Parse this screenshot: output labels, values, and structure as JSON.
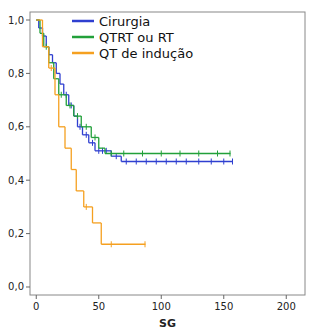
{
  "chart_data": {
    "type": "survival",
    "xlabel": "SG",
    "xlim": [
      -5,
      215
    ],
    "ylim": [
      -0.03,
      1.03
    ],
    "xticks": [
      0,
      50,
      100,
      150,
      200
    ],
    "yticks": [
      {
        "value": 0,
        "label": "0,0"
      },
      {
        "value": 0.2,
        "label": "0,2"
      },
      {
        "value": 0.4,
        "label": "0,4"
      },
      {
        "value": 0.6,
        "label": "0,6"
      },
      {
        "value": 0.8,
        "label": "0,8"
      },
      {
        "value": 1,
        "label": "1,0"
      }
    ],
    "legend": "top",
    "series": [
      {
        "name": "Cirurgia",
        "color": "#2f3fd0",
        "x": [
          0,
          2,
          5,
          8,
          10,
          13,
          16,
          19,
          22,
          26,
          30,
          33,
          37,
          42,
          47,
          60,
          68,
          157
        ],
        "values": [
          1,
          0.97,
          0.94,
          0.9,
          0.87,
          0.84,
          0.8,
          0.76,
          0.72,
          0.68,
          0.64,
          0.6,
          0.57,
          0.54,
          0.51,
          0.49,
          0.47,
          0.47
        ],
        "censor_x": [
          24,
          28,
          35,
          40,
          45,
          50,
          53,
          56,
          64,
          72,
          80,
          88,
          96,
          104,
          112,
          120,
          130,
          140,
          150,
          157
        ],
        "censor_values": [
          0.72,
          0.68,
          0.6,
          0.57,
          0.54,
          0.51,
          0.51,
          0.51,
          0.49,
          0.47,
          0.47,
          0.47,
          0.47,
          0.47,
          0.47,
          0.47,
          0.47,
          0.47,
          0.47,
          0.47
        ]
      },
      {
        "name": "QTRT ou RT",
        "color": "#22a03a",
        "x": [
          0,
          3,
          6,
          10,
          14,
          18,
          24,
          30,
          36,
          44,
          50,
          55,
          155
        ],
        "values": [
          1,
          0.95,
          0.9,
          0.84,
          0.78,
          0.72,
          0.68,
          0.64,
          0.6,
          0.56,
          0.52,
          0.5,
          0.5
        ],
        "censor_x": [
          8,
          20,
          27,
          33,
          40,
          47,
          60,
          70,
          85,
          100,
          115,
          130,
          145,
          155
        ],
        "censor_values": [
          0.9,
          0.72,
          0.68,
          0.64,
          0.6,
          0.56,
          0.5,
          0.5,
          0.5,
          0.5,
          0.5,
          0.5,
          0.5,
          0.5
        ]
      },
      {
        "name": "QT de indução",
        "color": "#f5a020",
        "x": [
          0,
          5,
          10,
          15,
          18,
          23,
          28,
          32,
          38,
          45,
          52,
          87
        ],
        "values": [
          1,
          0.9,
          0.82,
          0.72,
          0.6,
          0.52,
          0.44,
          0.36,
          0.3,
          0.24,
          0.16,
          0.16
        ],
        "censor_x": [
          12,
          40,
          60,
          87
        ],
        "censor_values": [
          0.82,
          0.3,
          0.16,
          0.16
        ]
      }
    ]
  }
}
